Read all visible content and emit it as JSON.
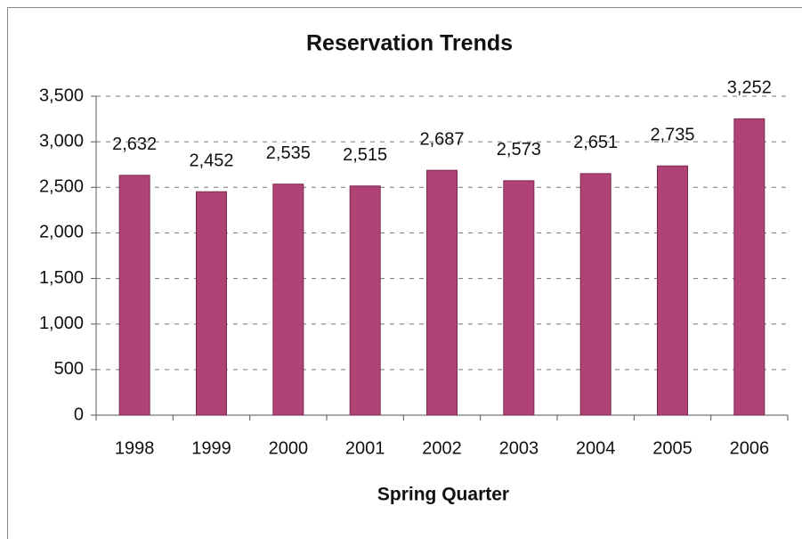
{
  "chart_data": {
    "type": "bar",
    "title": "Reservation Trends",
    "x_label": "Spring Quarter",
    "categories": [
      "1998",
      "1999",
      "2000",
      "2001",
      "2002",
      "2003",
      "2004",
      "2005",
      "2006"
    ],
    "values": [
      2632,
      2452,
      2535,
      2515,
      2687,
      2573,
      2651,
      2735,
      3252
    ],
    "value_labels": [
      "2,632",
      "2,452",
      "2,535",
      "2,515",
      "2,687",
      "2,573",
      "2,651",
      "2,735",
      "3,252"
    ],
    "color": "#b04376",
    "ylim": [
      0,
      3500
    ],
    "yticks": [
      0,
      500,
      {
        "value": 1000,
        "label": "1,000"
      },
      {
        "value": 1500,
        "label": "1,500"
      },
      {
        "value": 2000,
        "label": "2,000"
      },
      {
        "value": 2500,
        "label": "2,500"
      },
      {
        "value": 3000,
        "label": "3,000"
      },
      {
        "value": 3500,
        "label": "3,500"
      }
    ],
    "grid": true
  }
}
